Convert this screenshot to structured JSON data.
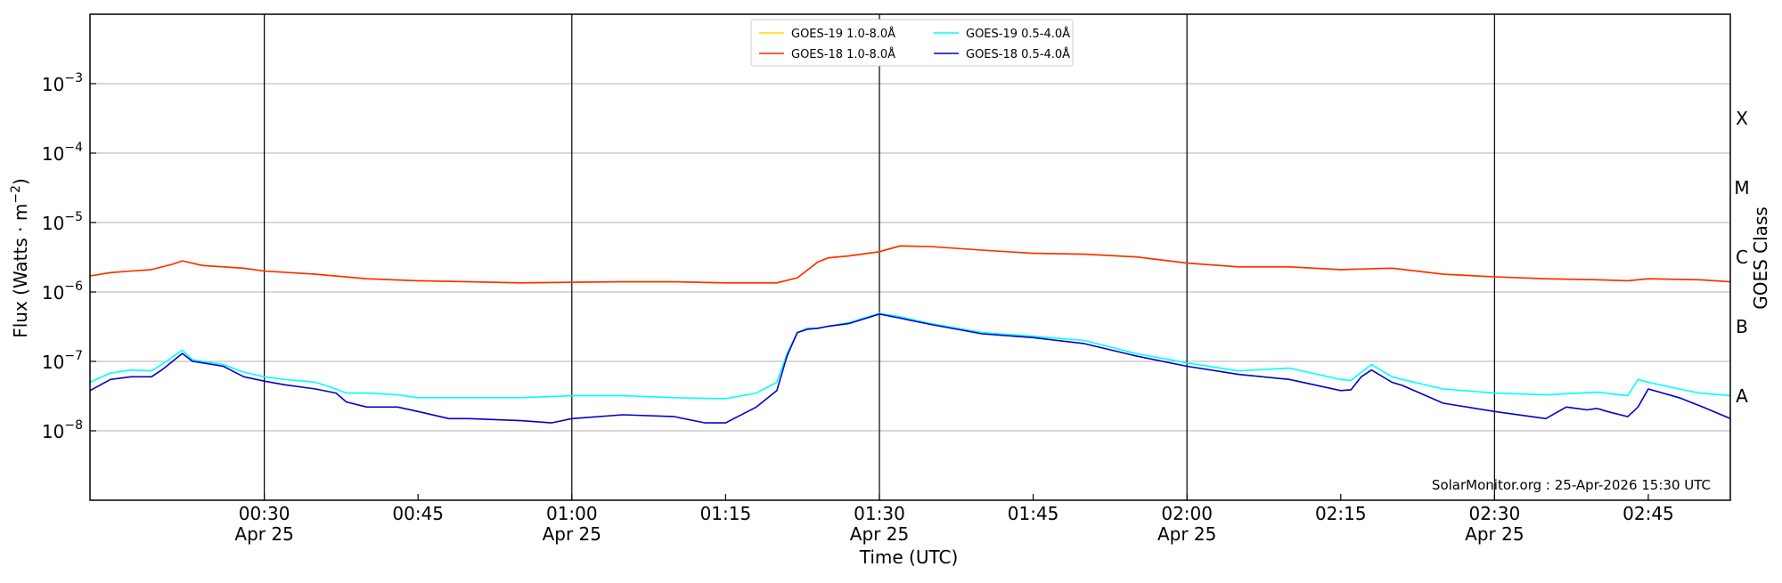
{
  "chart_data": {
    "type": "line",
    "xlabel": "Time (UTC)",
    "ylabel_main": "Flux (Watts · m",
    "ylabel_exp": "−2",
    "ylabel_close": ")",
    "ylabel_right": "GOES Class",
    "yscale": "log",
    "ylim": [
      1e-09,
      0.01
    ],
    "xlim_min": [
      0,
      13,
      0
    ],
    "xlim_max": [
      2,
      53,
      0
    ],
    "x_tick_minutes": [
      30,
      45,
      60,
      75,
      90,
      105,
      120,
      135,
      150,
      165
    ],
    "x_tick_labels": [
      "00:30",
      "00:45",
      "01:00",
      "01:15",
      "01:30",
      "01:45",
      "02:00",
      "02:15",
      "02:30",
      "02:45"
    ],
    "x_tick_dates": [
      "Apr 25",
      "",
      "Apr 25",
      "",
      "Apr 25",
      "",
      "Apr 25",
      "",
      "Apr 25",
      ""
    ],
    "vlines_minutes": [
      30,
      60,
      90,
      120,
      150
    ],
    "y_ticks": [
      {
        "value": 1e-08,
        "base": "10",
        "exp": "−8"
      },
      {
        "value": 1e-07,
        "base": "10",
        "exp": "−7"
      },
      {
        "value": 1e-06,
        "base": "10",
        "exp": "−6"
      },
      {
        "value": 1e-05,
        "base": "10",
        "exp": "−5"
      },
      {
        "value": 0.0001,
        "base": "10",
        "exp": "−4"
      },
      {
        "value": 0.001,
        "base": "10",
        "exp": "−3"
      }
    ],
    "goes_classes": [
      {
        "label": "A",
        "value": 3.16e-08
      },
      {
        "label": "B",
        "value": 3.16e-07
      },
      {
        "label": "C",
        "value": 3.16e-06
      },
      {
        "label": "M",
        "value": 3.16e-05
      },
      {
        "label": "X",
        "value": 0.000316
      }
    ],
    "legend": [
      {
        "label": "GOES-19 1.0-8.0Å",
        "color": "#ffd700"
      },
      {
        "label": "GOES-18 1.0-8.0Å",
        "color": "#ff2a00"
      },
      {
        "label": "GOES-19 0.5-4.0Å",
        "color": "#00ffff"
      },
      {
        "label": "GOES-18 0.5-4.0Å",
        "color": "#0000cc"
      }
    ],
    "annotation": "SolarMonitor.org : 25-Apr-2026 15:30 UTC",
    "series": [
      {
        "name": "GOES-19 1.0-8.0Å",
        "color": "#ffd700",
        "x_minutes": [
          13,
          15,
          17,
          19,
          21,
          22,
          24,
          26,
          28,
          30,
          35,
          40,
          45,
          50,
          55,
          60,
          65,
          70,
          75,
          80,
          82,
          84,
          85,
          87,
          90,
          92,
          95,
          100,
          105,
          110,
          115,
          120,
          125,
          130,
          135,
          140,
          145,
          150,
          155,
          160,
          163,
          165,
          170,
          173
        ],
        "values": [
          1.7e-06,
          1.9e-06,
          2e-06,
          2.1e-06,
          2.5e-06,
          2.8e-06,
          2.4e-06,
          2.3e-06,
          2.2e-06,
          2e-06,
          1.8e-06,
          1.55e-06,
          1.45e-06,
          1.4e-06,
          1.35e-06,
          1.38e-06,
          1.4e-06,
          1.4e-06,
          1.35e-06,
          1.35e-06,
          1.6e-06,
          2.7e-06,
          3.1e-06,
          3.3e-06,
          3.8e-06,
          4.6e-06,
          4.5e-06,
          4e-06,
          3.6e-06,
          3.5e-06,
          3.2e-06,
          2.6e-06,
          2.3e-06,
          2.3e-06,
          2.1e-06,
          2.2e-06,
          1.8e-06,
          1.65e-06,
          1.55e-06,
          1.5e-06,
          1.45e-06,
          1.55e-06,
          1.5e-06,
          1.4e-06
        ]
      },
      {
        "name": "GOES-18 1.0-8.0Å",
        "color": "#ff2a00",
        "x_minutes": [
          13,
          15,
          17,
          19,
          21,
          22,
          24,
          26,
          28,
          30,
          35,
          40,
          45,
          50,
          55,
          60,
          65,
          70,
          75,
          80,
          82,
          84,
          85,
          87,
          90,
          92,
          95,
          100,
          105,
          110,
          115,
          120,
          125,
          130,
          135,
          140,
          145,
          150,
          155,
          160,
          163,
          165,
          170,
          173
        ],
        "values": [
          1.7e-06,
          1.9e-06,
          2e-06,
          2.1e-06,
          2.5e-06,
          2.8e-06,
          2.4e-06,
          2.3e-06,
          2.2e-06,
          2e-06,
          1.8e-06,
          1.55e-06,
          1.45e-06,
          1.4e-06,
          1.35e-06,
          1.38e-06,
          1.4e-06,
          1.4e-06,
          1.35e-06,
          1.35e-06,
          1.6e-06,
          2.7e-06,
          3.1e-06,
          3.3e-06,
          3.8e-06,
          4.6e-06,
          4.5e-06,
          4e-06,
          3.6e-06,
          3.5e-06,
          3.2e-06,
          2.6e-06,
          2.3e-06,
          2.3e-06,
          2.1e-06,
          2.2e-06,
          1.8e-06,
          1.65e-06,
          1.55e-06,
          1.5e-06,
          1.45e-06,
          1.55e-06,
          1.5e-06,
          1.4e-06
        ]
      },
      {
        "name": "GOES-19 0.5-4.0Å",
        "color": "#00ffff",
        "x_minutes": [
          13,
          15,
          17,
          19,
          20,
          22,
          23,
          24,
          26,
          28,
          30,
          32,
          35,
          37,
          38,
          40,
          43,
          45,
          50,
          55,
          60,
          65,
          70,
          75,
          78,
          80,
          81,
          82,
          83,
          84,
          85,
          87,
          90,
          92,
          95,
          100,
          105,
          110,
          115,
          120,
          125,
          130,
          135,
          136,
          137,
          138,
          140,
          141,
          145,
          150,
          155,
          160,
          163,
          164,
          165,
          168,
          170,
          173
        ],
        "values": [
          5e-08,
          6.8e-08,
          7.5e-08,
          7.3e-08,
          9e-08,
          1.45e-07,
          1.05e-07,
          1e-07,
          9e-08,
          7e-08,
          6e-08,
          5.5e-08,
          5e-08,
          4e-08,
          3.5e-08,
          3.5e-08,
          3.3e-08,
          3e-08,
          3e-08,
          3e-08,
          3.2e-08,
          3.2e-08,
          3e-08,
          2.9e-08,
          3.5e-08,
          5e-08,
          1.3e-07,
          2.6e-07,
          3e-07,
          3e-07,
          3.2e-07,
          3.6e-07,
          4.9e-07,
          4.4e-07,
          3.5e-07,
          2.6e-07,
          2.3e-07,
          2e-07,
          1.3e-07,
          9.5e-08,
          7.3e-08,
          8e-08,
          5.5e-08,
          5.3e-08,
          7e-08,
          9e-08,
          6e-08,
          5.5e-08,
          4e-08,
          3.5e-08,
          3.3e-08,
          3.6e-08,
          3.2e-08,
          5.5e-08,
          5e-08,
          4e-08,
          3.5e-08,
          3.2e-08
        ]
      },
      {
        "name": "GOES-18 0.5-4.0Å",
        "color": "#0000cc",
        "x_minutes": [
          13,
          15,
          17,
          19,
          20,
          22,
          23,
          24,
          26,
          28,
          30,
          32,
          35,
          37,
          38,
          40,
          43,
          45,
          48,
          50,
          55,
          58,
          60,
          65,
          70,
          73,
          75,
          78,
          80,
          81,
          82,
          83,
          84,
          85,
          87,
          90,
          92,
          95,
          100,
          105,
          110,
          115,
          120,
          125,
          130,
          135,
          136,
          137,
          138,
          140,
          141,
          145,
          150,
          155,
          157,
          159,
          160,
          161,
          163,
          164,
          165,
          168,
          170,
          173
        ],
        "values": [
          3.8e-08,
          5.5e-08,
          6e-08,
          6e-08,
          7.5e-08,
          1.3e-07,
          1e-07,
          9.5e-08,
          8.5e-08,
          6e-08,
          5.2e-08,
          4.6e-08,
          4e-08,
          3.5e-08,
          2.6e-08,
          2.2e-08,
          2.2e-08,
          1.9e-08,
          1.5e-08,
          1.5e-08,
          1.4e-08,
          1.3e-08,
          1.5e-08,
          1.7e-08,
          1.6e-08,
          1.3e-08,
          1.3e-08,
          2.2e-08,
          3.8e-08,
          1.2e-07,
          2.6e-07,
          2.9e-07,
          3e-07,
          3.2e-07,
          3.5e-07,
          4.8e-07,
          4.2e-07,
          3.4e-07,
          2.5e-07,
          2.2e-07,
          1.8e-07,
          1.2e-07,
          8.5e-08,
          6.5e-08,
          5.5e-08,
          3.8e-08,
          3.9e-08,
          6e-08,
          7.5e-08,
          5e-08,
          4.5e-08,
          2.5e-08,
          1.9e-08,
          1.5e-08,
          2.2e-08,
          2e-08,
          2.1e-08,
          1.9e-08,
          1.6e-08,
          2.2e-08,
          4e-08,
          3e-08,
          2.3e-08,
          1.5e-08
        ]
      }
    ]
  }
}
